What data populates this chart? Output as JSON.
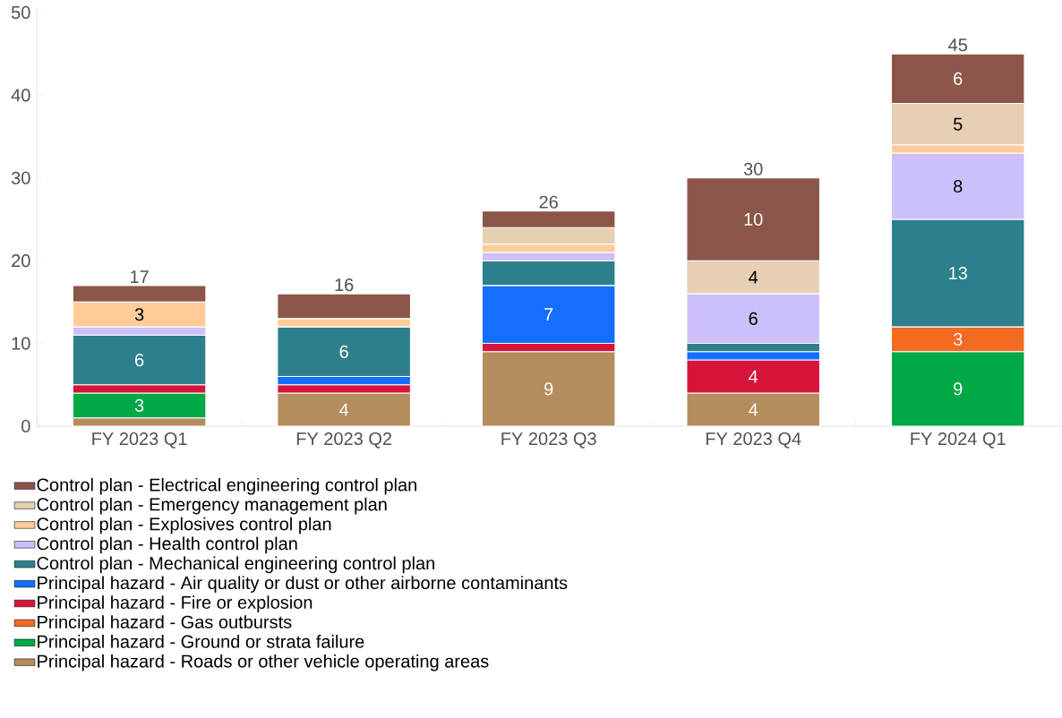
{
  "chart_data": {
    "type": "bar",
    "stacked": true,
    "legend": "bottom",
    "categories": [
      "FY 2023 Q1",
      "FY 2023 Q2",
      "FY 2023 Q3",
      "FY 2023 Q4",
      "FY 2024 Q1"
    ],
    "ylim": [
      0,
      50.5
    ],
    "yticks": [
      0,
      10,
      20,
      30,
      40,
      50
    ],
    "totals": [
      "17",
      "16",
      "26",
      "30",
      "45"
    ],
    "series": [
      {
        "name": "Principal hazard - Roads or other vehicle operating areas",
        "color": "#b48d5e",
        "values": [
          1,
          4,
          9,
          4,
          null
        ],
        "value_labels": [
          null,
          "4",
          "9",
          "4",
          null
        ]
      },
      {
        "name": "Principal hazard - Ground or strata failure",
        "color": "#00a846",
        "values": [
          3,
          null,
          null,
          null,
          9
        ],
        "value_labels": [
          "3",
          null,
          null,
          null,
          "9"
        ]
      },
      {
        "name": "Principal hazard - Gas outbursts",
        "color": "#f26b21",
        "values": [
          null,
          null,
          null,
          null,
          3
        ],
        "value_labels": [
          null,
          null,
          null,
          null,
          "3"
        ]
      },
      {
        "name": "Principal hazard - Fire or explosion",
        "color": "#d7153a",
        "values": [
          1,
          1,
          1,
          4,
          null
        ],
        "value_labels": [
          null,
          null,
          null,
          "4",
          null
        ]
      },
      {
        "name": "Principal hazard - Air quality or dust or other airborne contaminants",
        "color": "#146eff",
        "values": [
          null,
          1,
          7,
          1,
          null
        ],
        "value_labels": [
          null,
          null,
          "7",
          null,
          null
        ]
      },
      {
        "name": "Control plan - Mechanical engineering control plan",
        "color": "#2e7f8c",
        "values": [
          6,
          6,
          3,
          1,
          13
        ],
        "value_labels": [
          "6",
          "6",
          null,
          null,
          "13"
        ]
      },
      {
        "name": "Control plan - Health control plan",
        "color": "#cdbffa",
        "values": [
          1,
          null,
          1,
          6,
          8
        ],
        "value_labels": [
          null,
          null,
          null,
          "6",
          "8"
        ]
      },
      {
        "name": "Control plan - Explosives control plan",
        "color": "#ffcc99",
        "values": [
          3,
          1,
          1,
          null,
          1
        ],
        "value_labels": [
          "3",
          null,
          null,
          null,
          null
        ]
      },
      {
        "name": "Control plan - Emergency management plan",
        "color": "#e6cfb3",
        "values": [
          null,
          null,
          2,
          4,
          5
        ],
        "value_labels": [
          null,
          null,
          null,
          "4",
          "5"
        ]
      },
      {
        "name": "Control plan - Electrical engineering control plan",
        "color": "#8b5649",
        "values": [
          2,
          3,
          2,
          10,
          6
        ],
        "value_labels": [
          null,
          null,
          null,
          "10",
          "6"
        ]
      }
    ]
  }
}
